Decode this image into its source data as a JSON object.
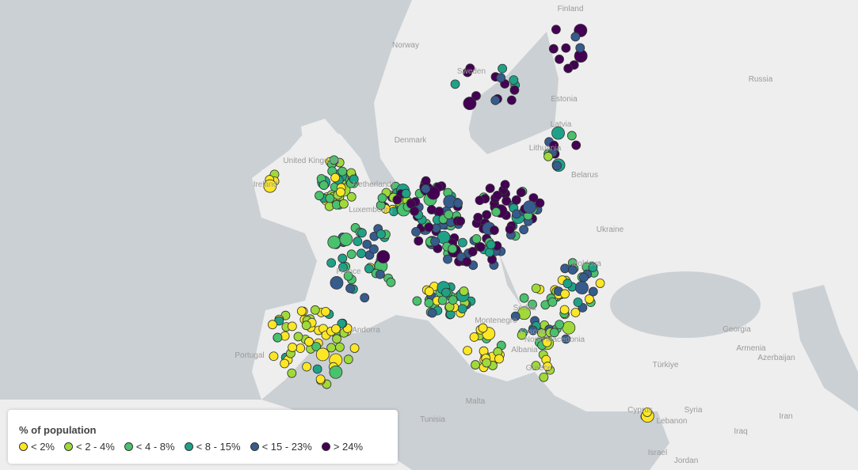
{
  "map": {
    "labels": [
      "Norway",
      "Sweden",
      "Finland",
      "Russia",
      "Estonia",
      "Latvia",
      "Lithuania",
      "Belarus",
      "Ukraine",
      "Moldova",
      "Denmark",
      "United Kingdom",
      "Ireland",
      "Netherlands",
      "Luxembourg",
      "France",
      "Andorra",
      "Portugal",
      "Serbia",
      "Montenegro",
      "Kosovo",
      "North Macedonia",
      "Albania",
      "Greece",
      "Türkiye",
      "Georgia",
      "Armenia",
      "Azerbaijan",
      "Syria",
      "Lebanon",
      "Iraq",
      "Iran",
      "Israel",
      "Jordan",
      "Tunisia",
      "Cyprus",
      "Malta"
    ],
    "legend": {
      "title": "% of population",
      "items": [
        {
          "label": "< 2%",
          "color": "#fde725"
        },
        {
          "label": "< 2 - 4%",
          "color": "#a0da39"
        },
        {
          "label": "< 4 - 8%",
          "color": "#4ac16d"
        },
        {
          "label": "< 8 - 15%",
          "color": "#1fa187"
        },
        {
          "label": "< 15 - 23%",
          "color": "#365c8d"
        },
        {
          "label": "> 24%",
          "color": "#440154"
        }
      ]
    }
  }
}
